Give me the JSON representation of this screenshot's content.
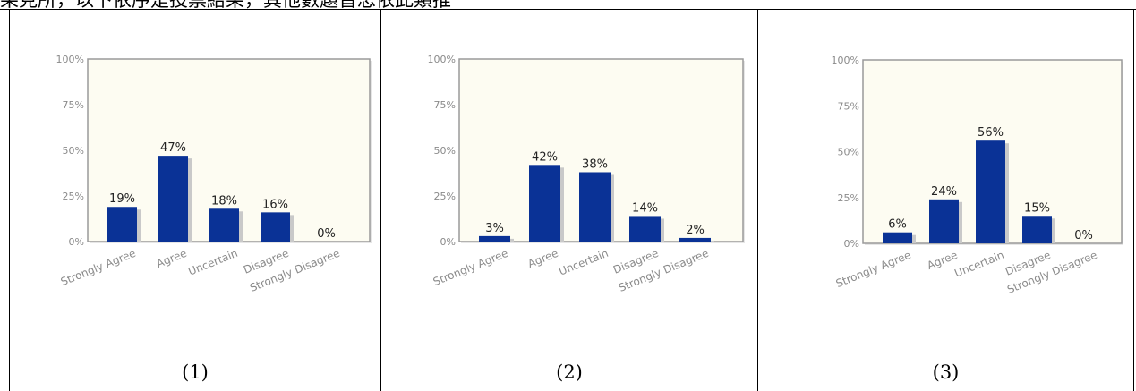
{
  "header": {
    "text": "果見所，以下依序是投票結果，其他數題皆忠依此類推"
  },
  "panels": [
    {
      "caption": "(1)"
    },
    {
      "caption": "(2)"
    },
    {
      "caption": "(3)"
    }
  ],
  "colors": {
    "bar": "#0a3296",
    "bar_shadow": "#c9c9c9",
    "plot_bg": "#fdfcf2",
    "plot_border": "#9a9a9a",
    "tick_text": "#8a8a8a",
    "label_text": "#222222"
  },
  "chart_data": [
    {
      "type": "bar",
      "categories": [
        "Strongly Agree",
        "Agree",
        "Uncertain",
        "Disagree",
        "Strongly Disagree"
      ],
      "values": [
        19,
        47,
        18,
        16,
        0
      ],
      "value_labels": [
        "19%",
        "47%",
        "18%",
        "16%",
        "0%"
      ],
      "y_ticks": [
        "0%",
        "25%",
        "50%",
        "75%",
        "100%"
      ],
      "ylim": [
        0,
        100
      ],
      "grid": false
    },
    {
      "type": "bar",
      "categories": [
        "Strongly Agree",
        "Agree",
        "Uncertain",
        "Disagree",
        "Strongly Disagree"
      ],
      "values": [
        3,
        42,
        38,
        14,
        2
      ],
      "value_labels": [
        "3%",
        "42%",
        "38%",
        "14%",
        "2%"
      ],
      "y_ticks": [
        "0%",
        "25%",
        "50%",
        "75%",
        "100%"
      ],
      "ylim": [
        0,
        100
      ],
      "grid": false
    },
    {
      "type": "bar",
      "categories": [
        "Strongly Agree",
        "Agree",
        "Uncertain",
        "Disagree",
        "Strongly Disagree"
      ],
      "values": [
        6,
        24,
        56,
        15,
        0
      ],
      "value_labels": [
        "6%",
        "24%",
        "56%",
        "15%",
        "0%"
      ],
      "y_ticks": [
        "0%",
        "25%",
        "50%",
        "75%",
        "100%"
      ],
      "ylim": [
        0,
        100
      ],
      "grid": false
    }
  ]
}
